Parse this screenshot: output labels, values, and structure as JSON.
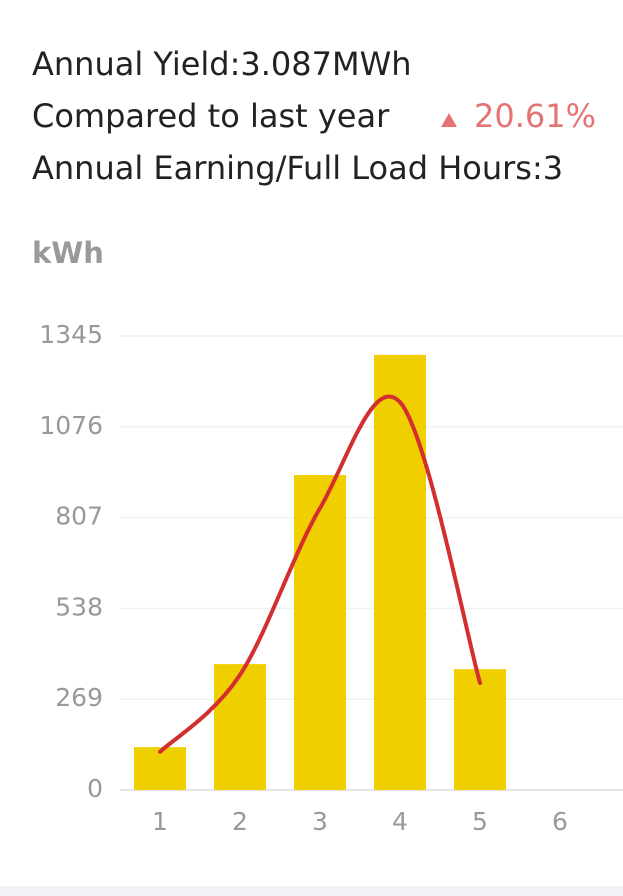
{
  "header": {
    "yield": "Annual Yield:3.087MWh",
    "compare": "Compared to last year",
    "change": "20.61%",
    "earning": "Annual Earning/Full Load Hours:3"
  },
  "chart_data": {
    "type": "bar_line",
    "y_label": "kWh",
    "categories": [
      "1",
      "2",
      "3",
      "4",
      "5",
      "6"
    ],
    "series": [
      {
        "type": "bar",
        "color": "#f0cf00",
        "values": [
          127,
          373,
          933,
          1289,
          358,
          null
        ]
      },
      {
        "type": "line",
        "color": "#d32f2f",
        "values": [
          113,
          341,
          835,
          1149,
          317,
          null
        ]
      }
    ],
    "ylim": [
      0,
      1345
    ],
    "yticks": [
      0,
      269,
      538,
      807,
      1076,
      1345
    ],
    "grid": true
  }
}
